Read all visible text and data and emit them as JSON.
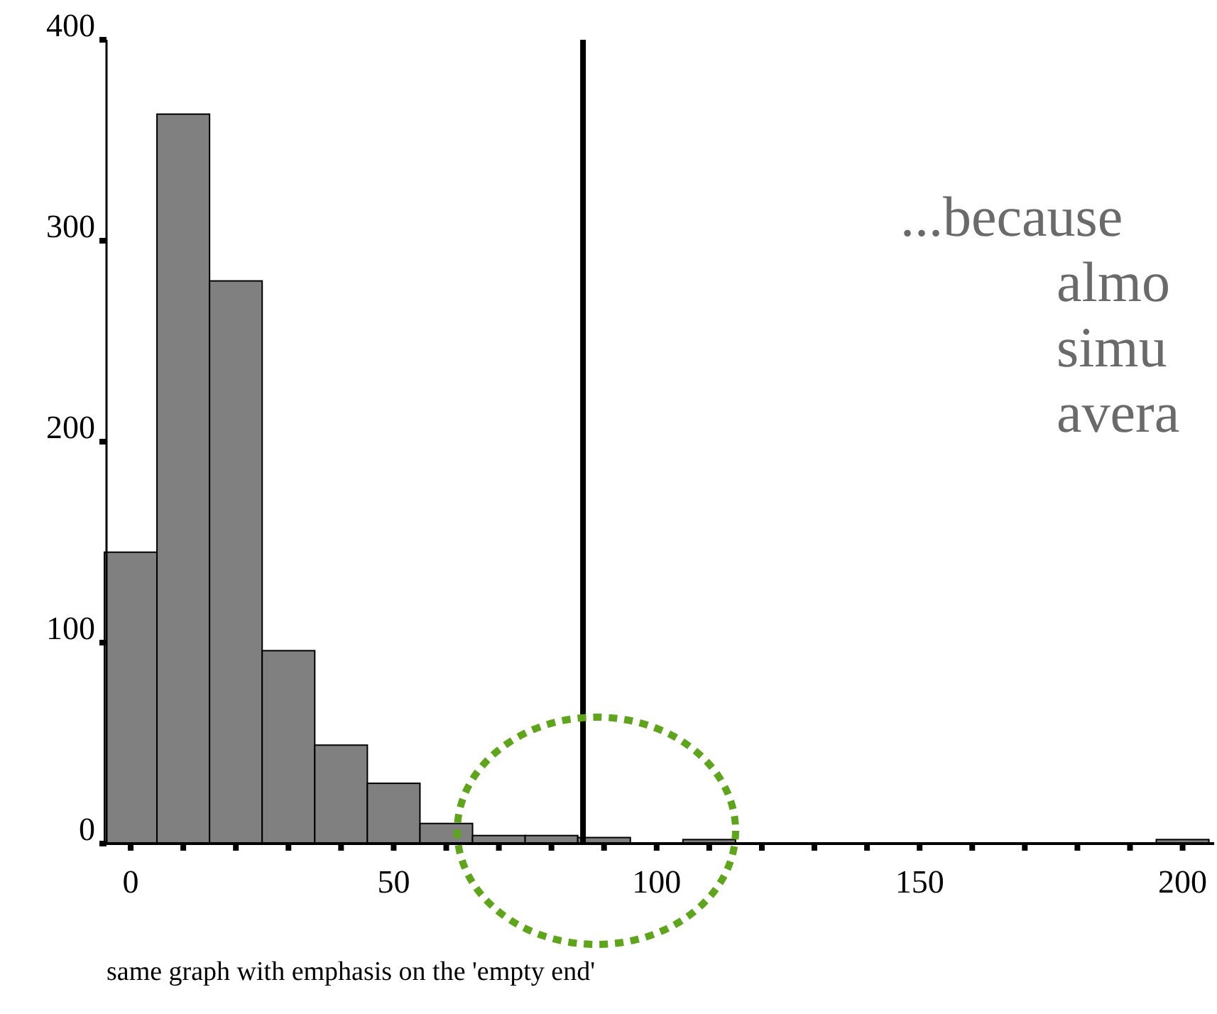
{
  "chart_data": {
    "type": "histogram",
    "bins": [
      -5,
      5,
      15,
      25,
      35,
      45,
      55,
      65,
      75,
      85,
      95,
      105,
      115,
      125,
      135,
      145,
      155,
      165,
      175,
      185,
      195,
      205
    ],
    "values": [
      145,
      363,
      280,
      96,
      49,
      30,
      10,
      4,
      4,
      3,
      0,
      2,
      0,
      0,
      0,
      0,
      0,
      0,
      0,
      0,
      2
    ],
    "color": "#808080",
    "xlim": [
      -5,
      206
    ],
    "ylim": [
      0,
      400
    ],
    "xticks": [
      0,
      {
        "value": 10,
        "label": null
      },
      {
        "value": 20,
        "label": null
      },
      {
        "value": 30,
        "label": null
      },
      {
        "value": 40,
        "label": null
      },
      50,
      {
        "value": 60,
        "label": null
      },
      {
        "value": 70,
        "label": null
      },
      {
        "value": 80,
        "label": null
      },
      {
        "value": 90,
        "label": null
      },
      100,
      {
        "value": 110,
        "label": null
      },
      {
        "value": 120,
        "label": null
      },
      {
        "value": 130,
        "label": null
      },
      {
        "value": 140,
        "label": null
      },
      150,
      {
        "value": 160,
        "label": null
      },
      {
        "value": 170,
        "label": null
      },
      {
        "value": 180,
        "label": null
      },
      {
        "value": 190,
        "label": null
      },
      200
    ],
    "yticks": [
      0,
      100,
      200,
      300,
      400
    ],
    "ref_lines": [
      {
        "axis": "x",
        "value": 86,
        "color": "#000000"
      }
    ],
    "annotations": [
      "...because\nalmo\nsimu\navera",
      "same graph with emphasis on the 'empty end'"
    ],
    "grid": false
  }
}
